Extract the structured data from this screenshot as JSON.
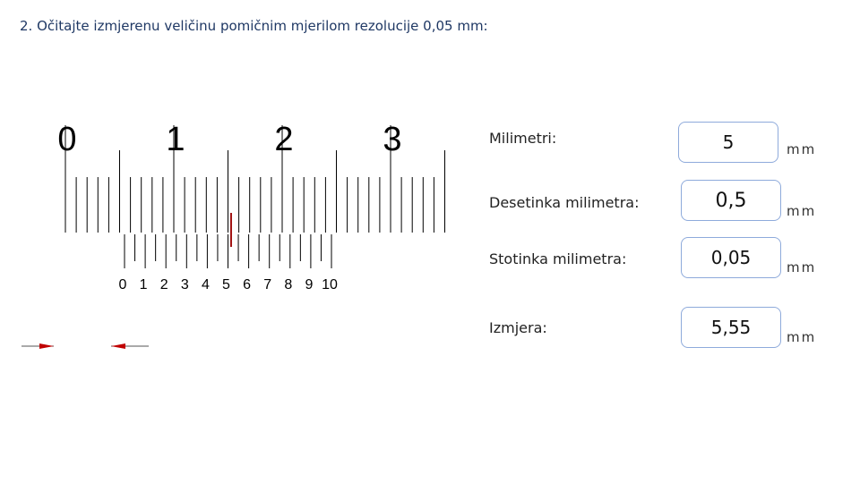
{
  "title": "2. Očitajte izmjerenu veličinu pomičnim mjerilom rezolucije 0,05 mm:",
  "main_scale": {
    "labels": [
      "0",
      "1",
      "2",
      "3"
    ]
  },
  "vernier_scale": {
    "labels": [
      "0",
      "1",
      "2",
      "3",
      "4",
      "5",
      "6",
      "7",
      "8",
      "9",
      "10"
    ]
  },
  "rows": [
    {
      "label": "Milimetri:",
      "value": "5",
      "unit": "mm"
    },
    {
      "label": "Desetinka milimetra:",
      "value": "0,5",
      "unit": "mm"
    },
    {
      "label": "Stotinka milimetra:",
      "value": "0,05",
      "unit": "mm"
    },
    {
      "label": "Izmjera:",
      "value": "5,55",
      "unit": "mm"
    }
  ],
  "colors": {
    "title": "#1f3864",
    "ticks": "#000000",
    "coincidence": "#a31515",
    "arrows": "#c00000",
    "box_border": "#8eaadb"
  }
}
